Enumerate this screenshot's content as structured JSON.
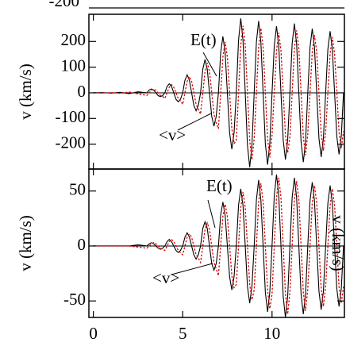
{
  "top_fragment_label": "-200",
  "chart_data": [
    {
      "type": "line",
      "y_label": "v (km/s)",
      "annotations": [
        "E(t)",
        "<v>"
      ],
      "xlim": [
        -0.25,
        14.05
      ],
      "xticks": [
        0,
        5,
        10
      ],
      "ylim": [
        -297,
        306
      ],
      "yticks": [
        200,
        100,
        0,
        -100,
        -200
      ],
      "x": [
        0,
        0.5,
        1,
        1.5,
        2,
        2.5,
        3,
        3.125,
        3.25,
        3.375,
        3.5,
        3.625,
        3.75,
        3.875,
        4,
        4.125,
        4.25,
        4.375,
        4.5,
        4.625,
        4.75,
        4.875,
        5,
        5.125,
        5.25,
        5.375,
        5.5,
        5.625,
        5.75,
        5.875,
        6,
        6.125,
        6.25,
        6.375,
        6.5,
        6.625,
        6.75,
        6.875,
        7,
        7.125,
        7.25,
        7.375,
        7.5,
        7.625,
        7.75,
        7.875,
        8,
        8.125,
        8.25,
        8.375,
        8.5,
        8.625,
        8.75,
        8.875,
        9,
        9.125,
        9.25,
        9.375,
        9.5,
        9.625,
        9.75,
        9.875,
        10,
        10.125,
        10.25,
        10.375,
        10.5,
        10.625,
        10.75,
        10.875,
        11,
        11.125,
        11.25,
        11.375,
        11.5,
        11.625,
        11.75,
        11.875,
        12,
        12.125,
        12.25,
        12.375,
        12.5,
        12.625,
        12.75,
        12.875,
        13,
        13.125,
        13.25,
        13.375,
        13.5,
        13.625,
        13.75,
        13.875,
        14
      ],
      "series": [
        {
          "name": "E(t)",
          "color": "#000000",
          "dash": false,
          "values": [
            0,
            1,
            -1,
            2,
            -3,
            4,
            0,
            11,
            15,
            11,
            0,
            -11,
            -15,
            -11,
            0,
            25,
            35,
            25,
            0,
            -25,
            -35,
            -25,
            0,
            49,
            70,
            49,
            0,
            -49,
            -70,
            -49,
            0,
            92,
            130,
            92,
            0,
            -92,
            -130,
            -92,
            0,
            156,
            220,
            156,
            0,
            -156,
            -220,
            -156,
            0,
            205,
            290,
            205,
            0,
            -205,
            -290,
            -205,
            0,
            198,
            280,
            198,
            0,
            -198,
            -280,
            -198,
            0,
            184,
            260,
            184,
            0,
            -184,
            -260,
            -184,
            0,
            191,
            270,
            191,
            0,
            -191,
            -270,
            -191,
            0,
            177,
            250,
            177,
            0,
            -177,
            -250,
            -177,
            0,
            170,
            240,
            170,
            0,
            -170,
            -240,
            -170,
            0
          ]
        },
        {
          "name": "<v>",
          "color": "#dd0000",
          "dash": true,
          "values": [
            0,
            -1,
            1,
            -2,
            3,
            -4,
            -10,
            0,
            10,
            14,
            10,
            0,
            -10,
            -14,
            -22,
            0,
            22,
            32,
            22,
            0,
            -22,
            -32,
            -45,
            0,
            45,
            63,
            45,
            0,
            -45,
            -63,
            -83,
            0,
            83,
            117,
            83,
            0,
            -83,
            -117,
            -140,
            0,
            140,
            198,
            140,
            0,
            -140,
            -198,
            -185,
            0,
            185,
            261,
            185,
            0,
            -185,
            -261,
            -178,
            0,
            178,
            252,
            178,
            0,
            -178,
            -252,
            -165,
            0,
            165,
            234,
            165,
            0,
            -165,
            -234,
            -172,
            0,
            172,
            243,
            172,
            0,
            -172,
            -243,
            -159,
            0,
            159,
            225,
            159,
            0,
            -159,
            -225,
            -153,
            0,
            153,
            216,
            153,
            0,
            -153,
            -216,
            -150
          ]
        }
      ]
    },
    {
      "type": "line",
      "y_label": "v (km/s)",
      "y_label_right": "v (km/s)",
      "annotations": [
        "E(t)",
        "<v>"
      ],
      "xlim": [
        -0.25,
        14.05
      ],
      "xticks": [
        0,
        5,
        10
      ],
      "ylim": [
        -65,
        70
      ],
      "yticks": [
        50,
        0,
        -50
      ],
      "x": [
        0,
        0.5,
        1,
        1.5,
        2,
        2.5,
        3,
        3.125,
        3.25,
        3.375,
        3.5,
        3.625,
        3.75,
        3.875,
        4,
        4.125,
        4.25,
        4.375,
        4.5,
        4.625,
        4.75,
        4.875,
        5,
        5.125,
        5.25,
        5.375,
        5.5,
        5.625,
        5.75,
        5.875,
        6,
        6.125,
        6.25,
        6.375,
        6.5,
        6.625,
        6.75,
        6.875,
        7,
        7.125,
        7.25,
        7.375,
        7.5,
        7.625,
        7.75,
        7.875,
        8,
        8.125,
        8.25,
        8.375,
        8.5,
        8.625,
        8.75,
        8.875,
        9,
        9.125,
        9.25,
        9.375,
        9.5,
        9.625,
        9.75,
        9.875,
        10,
        10.125,
        10.25,
        10.375,
        10.5,
        10.625,
        10.75,
        10.875,
        11,
        11.125,
        11.25,
        11.375,
        11.5,
        11.625,
        11.75,
        11.875,
        12,
        12.125,
        12.25,
        12.375,
        12.5,
        12.625,
        12.75,
        12.875,
        13,
        13.125,
        13.25,
        13.375,
        13.5,
        13.625,
        13.75,
        13.875,
        14
      ],
      "series": [
        {
          "name": "E(t)",
          "color": "#000000",
          "dash": false,
          "values": [
            0,
            0,
            0,
            0,
            0,
            1,
            0,
            2,
            3,
            2,
            0,
            -2,
            -3,
            -2,
            0,
            4,
            6,
            4,
            0,
            -4,
            -6,
            -4,
            0,
            8,
            12,
            8,
            0,
            -8,
            -12,
            -8,
            0,
            16,
            22,
            16,
            0,
            -16,
            -22,
            -16,
            0,
            28,
            40,
            28,
            0,
            -28,
            -40,
            -28,
            0,
            37,
            52,
            37,
            0,
            -37,
            -52,
            -37,
            0,
            42,
            60,
            42,
            0,
            -42,
            -60,
            -42,
            0,
            46,
            65,
            46,
            0,
            -46,
            -65,
            -46,
            0,
            44,
            62,
            44,
            0,
            -44,
            -62,
            -44,
            0,
            41,
            58,
            41,
            0,
            -41,
            -58,
            -41,
            0,
            39,
            55,
            39,
            0,
            -39,
            -55,
            -39,
            0
          ]
        },
        {
          "name": "<v>",
          "color": "#dd0000",
          "dash": true,
          "values": [
            0,
            0,
            0,
            0,
            0,
            -1,
            -2,
            0,
            2,
            3,
            2,
            0,
            -2,
            -3,
            -4,
            0,
            4,
            6,
            4,
            0,
            -4,
            -6,
            -8,
            0,
            8,
            11,
            8,
            0,
            -8,
            -11,
            -15,
            0,
            15,
            21,
            15,
            0,
            -15,
            -21,
            -27,
            0,
            27,
            38,
            27,
            0,
            -27,
            -38,
            -35,
            0,
            35,
            49,
            35,
            0,
            -35,
            -49,
            -40,
            0,
            40,
            57,
            40,
            0,
            -40,
            -57,
            -44,
            0,
            44,
            62,
            44,
            0,
            -44,
            -62,
            -42,
            0,
            42,
            59,
            42,
            0,
            -42,
            -59,
            -39,
            0,
            39,
            55,
            39,
            0,
            -39,
            -55,
            -37,
            0,
            37,
            52,
            37,
            0,
            -37,
            -52,
            -37
          ]
        }
      ]
    }
  ]
}
